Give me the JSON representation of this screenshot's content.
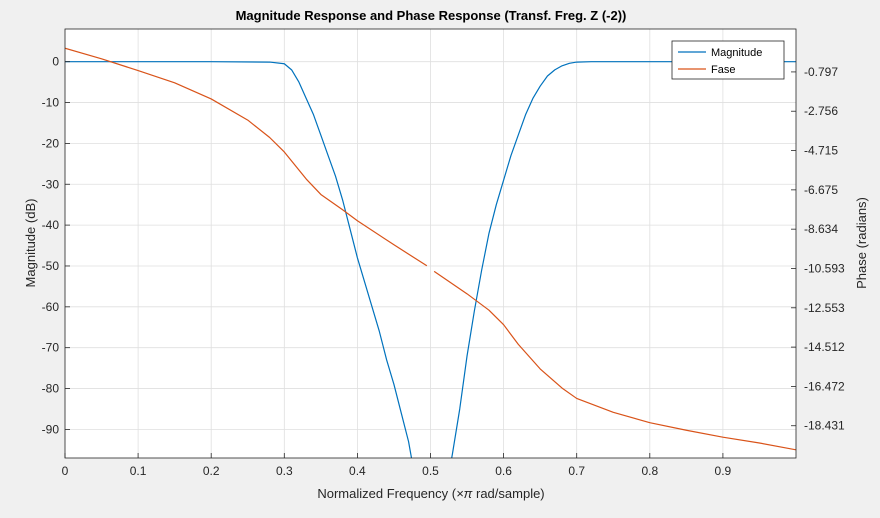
{
  "chart_data": {
    "type": "line",
    "title": "Magnitude Response and Phase Response (Transf. Freg. Z (-2))",
    "xlabel_prefix": "Normalized Frequency  (",
    "xlabel_symbol": "×π",
    "xlabel_suffix": " rad/sample)",
    "ylabel_left": "Magnitude (dB)",
    "ylabel_right": "Phase (radians)",
    "xlim": [
      0,
      1
    ],
    "ylim_left": [
      -97,
      8
    ],
    "ylim_right": [
      -20.039,
      1.342
    ],
    "x_ticks": [
      "0",
      "0.1",
      "0.2",
      "0.3",
      "0.4",
      "0.5",
      "0.6",
      "0.7",
      "0.8",
      "0.9"
    ],
    "x_tick_values": [
      0,
      0.1,
      0.2,
      0.3,
      0.4,
      0.5,
      0.6,
      0.7,
      0.8,
      0.9
    ],
    "y_left_ticks": [
      "0",
      "-10",
      "-20",
      "-30",
      "-40",
      "-50",
      "-60",
      "-70",
      "-80",
      "-90"
    ],
    "y_left_tick_values": [
      0,
      -10,
      -20,
      -30,
      -40,
      -50,
      -60,
      -70,
      -80,
      -90
    ],
    "y_right_ticks": [
      "-0.797",
      "-2.756",
      "-4.715",
      "-6.675",
      "-8.634",
      "-10.593",
      "-12.553",
      "-14.512",
      "-16.472",
      "-18.431"
    ],
    "y_right_tick_values": [
      -0.797,
      -2.756,
      -4.715,
      -6.675,
      -8.634,
      -10.593,
      -12.553,
      -14.512,
      -16.472,
      -18.431
    ],
    "grid": true,
    "legend_position": "top-right",
    "series": [
      {
        "name": "Magnitude",
        "axis": "left",
        "color": "#0072bd",
        "segments": [
          [
            [
              0,
              0
            ],
            [
              0.2,
              0
            ],
            [
              0.28,
              -0.1
            ],
            [
              0.3,
              -0.5
            ],
            [
              0.31,
              -2
            ],
            [
              0.32,
              -5
            ],
            [
              0.33,
              -9
            ],
            [
              0.34,
              -13
            ],
            [
              0.35,
              -18
            ],
            [
              0.36,
              -23
            ],
            [
              0.37,
              -28
            ],
            [
              0.38,
              -34
            ],
            [
              0.39,
              -41
            ],
            [
              0.4,
              -48
            ],
            [
              0.41,
              -54
            ],
            [
              0.42,
              -60
            ],
            [
              0.43,
              -66
            ],
            [
              0.44,
              -73
            ],
            [
              0.45,
              -79
            ],
            [
              0.46,
              -86
            ],
            [
              0.47,
              -93
            ],
            [
              0.474,
              -97
            ]
          ],
          [
            [
              0.529,
              -97
            ],
            [
              0.53,
              -96
            ],
            [
              0.54,
              -85
            ],
            [
              0.55,
              -72
            ],
            [
              0.56,
              -61
            ],
            [
              0.57,
              -51
            ],
            [
              0.58,
              -42
            ],
            [
              0.59,
              -35
            ],
            [
              0.6,
              -29
            ],
            [
              0.61,
              -23
            ],
            [
              0.62,
              -18
            ],
            [
              0.63,
              -13
            ],
            [
              0.64,
              -9
            ],
            [
              0.65,
              -6
            ],
            [
              0.66,
              -3.5
            ],
            [
              0.67,
              -2
            ],
            [
              0.68,
              -1
            ],
            [
              0.69,
              -0.4
            ],
            [
              0.7,
              -0.1
            ],
            [
              0.72,
              0
            ],
            [
              1.0,
              0
            ]
          ]
        ]
      },
      {
        "name": "Fase",
        "axis": "right",
        "color": "#d95319",
        "segments": [
          [
            [
              0,
              0.385
            ],
            [
              0.05,
              -0.144
            ],
            [
              0.1,
              -0.729
            ],
            [
              0.15,
              -1.341
            ],
            [
              0.2,
              -2.143
            ],
            [
              0.25,
              -3.198
            ],
            [
              0.28,
              -4.066
            ],
            [
              0.3,
              -4.785
            ],
            [
              0.33,
              -6.137
            ],
            [
              0.35,
              -6.905
            ],
            [
              0.38,
              -7.674
            ],
            [
              0.4,
              -8.216
            ],
            [
              0.45,
              -9.413
            ],
            [
              0.495,
              -10.46
            ]
          ],
          [
            [
              0.505,
              -10.737
            ],
            [
              0.55,
              -11.857
            ],
            [
              0.58,
              -12.672
            ],
            [
              0.6,
              -13.395
            ],
            [
              0.62,
              -14.369
            ],
            [
              0.65,
              -15.599
            ],
            [
              0.68,
              -16.554
            ],
            [
              0.7,
              -17.07
            ],
            [
              0.75,
              -17.763
            ],
            [
              0.8,
              -18.278
            ],
            [
              0.85,
              -18.655
            ],
            [
              0.9,
              -19.003
            ],
            [
              0.95,
              -19.292
            ],
            [
              1.0,
              -19.631
            ]
          ]
        ]
      }
    ]
  }
}
